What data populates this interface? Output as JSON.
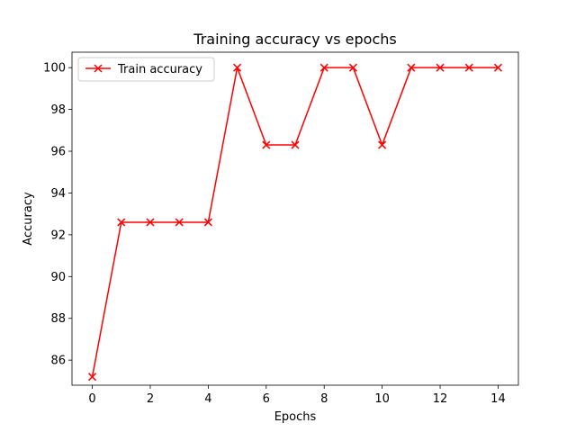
{
  "chart_data": {
    "type": "line",
    "title": "Training accuracy vs epochs",
    "xlabel": "Epochs",
    "ylabel": "Accuracy",
    "xlim": [
      -0.7,
      14.7
    ],
    "ylim": [
      84.8,
      100.74
    ],
    "xticks": [
      0,
      2,
      4,
      6,
      8,
      10,
      12,
      14
    ],
    "yticks": [
      86,
      88,
      90,
      92,
      94,
      96,
      98,
      100
    ],
    "grid": false,
    "legend_position": "top-left",
    "series": [
      {
        "name": "Train accuracy",
        "color": "#ff0000",
        "marker": "x",
        "x": [
          0,
          1,
          2,
          3,
          4,
          5,
          6,
          7,
          8,
          9,
          10,
          11,
          12,
          13,
          14
        ],
        "y": [
          85.2,
          92.6,
          92.6,
          92.6,
          92.6,
          100,
          96.3,
          96.3,
          100,
          100,
          96.3,
          100,
          100,
          100,
          100
        ]
      }
    ]
  }
}
